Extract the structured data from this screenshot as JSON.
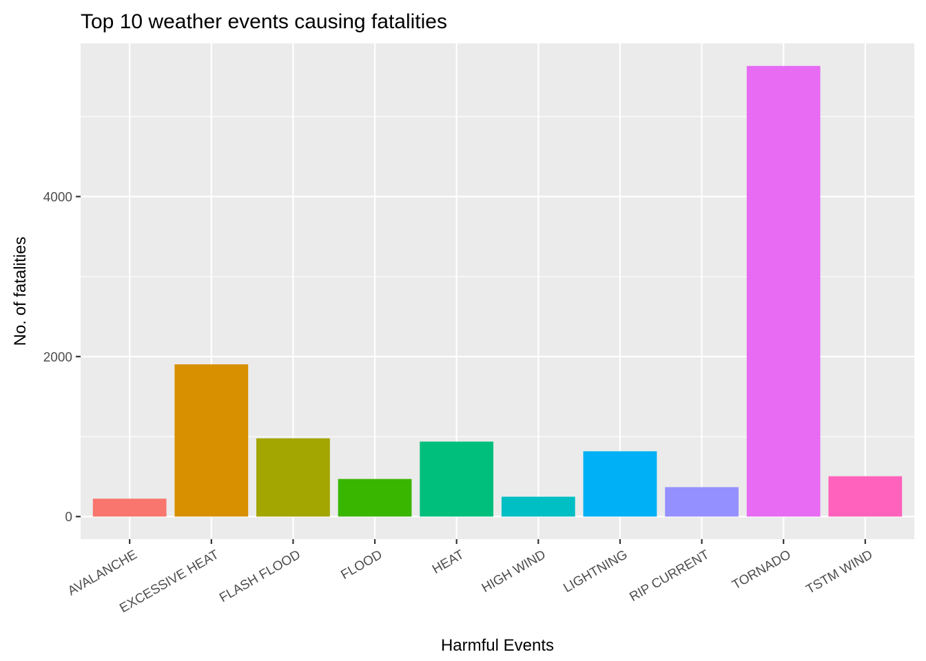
{
  "chart_data": {
    "type": "bar",
    "title": "Top 10 weather events causing fatalities",
    "xlabel": "Harmful Events",
    "ylabel": "No. of fatalities",
    "categories": [
      "AVALANCHE",
      "EXCESSIVE HEAT",
      "FLASH FLOOD",
      "FLOOD",
      "HEAT",
      "HIGH WIND",
      "LIGHTNING",
      "RIP CURRENT",
      "TORNADO",
      "TSTM WIND"
    ],
    "values": [
      224,
      1903,
      978,
      470,
      937,
      248,
      816,
      368,
      5633,
      504
    ],
    "colors": [
      "#F8766D",
      "#D89000",
      "#A3A500",
      "#39B600",
      "#00BF7D",
      "#00BFC4",
      "#00B0F6",
      "#9590FF",
      "#E76BF3",
      "#FF62BC"
    ],
    "y_ticks": [
      0,
      2000,
      4000
    ],
    "ylim": [
      -282,
      5915
    ],
    "grid": true,
    "panel_background": "#EBEBEB",
    "grid_color": "#FFFFFF",
    "legend": "none"
  }
}
